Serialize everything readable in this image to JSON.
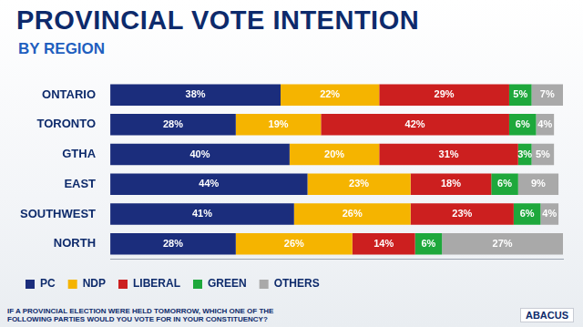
{
  "chart_data": {
    "type": "bar",
    "orientation": "horizontal",
    "stacked": true,
    "title": "PROVINCIAL VOTE INTENTION",
    "subtitle": "BY REGION",
    "annotations": [
      "IF A PROVINCIAL ELECTION WERE HELD TOMORROW, WHICH ONE OF THE FOLLOWING PARTIES WOULD YOU VOTE FOR IN YOUR CONSTITUENCY?"
    ],
    "source": "ABACUS",
    "categories": [
      "ONTARIO",
      "TORONTO",
      "GTHA",
      "EAST",
      "SOUTHWEST",
      "NORTH"
    ],
    "series": [
      {
        "name": "PC",
        "color": "#1b2d7c",
        "values": [
          38,
          28,
          40,
          44,
          41,
          28
        ],
        "value_labels": [
          "38%",
          "28%",
          "40%",
          "44%",
          "41%",
          "28%"
        ]
      },
      {
        "name": "NDP",
        "color": "#f5b400",
        "values": [
          22,
          19,
          20,
          23,
          26,
          26
        ],
        "value_labels": [
          "22%",
          "19%",
          "20%",
          "23%",
          "26%",
          "26%"
        ]
      },
      {
        "name": "LIBERAL",
        "color": "#cc1f1f",
        "values": [
          29,
          42,
          31,
          18,
          23,
          14
        ],
        "value_labels": [
          "29%",
          "42%",
          "31%",
          "18%",
          "23%",
          "14%"
        ]
      },
      {
        "name": "GREEN",
        "color": "#1ea83c",
        "values": [
          5,
          6,
          3,
          6,
          6,
          6
        ],
        "value_labels": [
          "5%",
          "6%",
          "3%",
          "6%",
          "6%",
          "6%"
        ]
      },
      {
        "name": "OTHERS",
        "color": "#a9a9a9",
        "values": [
          7,
          4,
          5,
          9,
          4,
          27
        ],
        "value_labels": [
          "7%",
          "4%",
          "5%",
          "9%",
          "4%",
          "27%"
        ]
      }
    ],
    "xlim": [
      0,
      101
    ],
    "xticks": [],
    "tick_labels": "y",
    "grid": false,
    "legend": "bottom",
    "data_labels": true
  }
}
